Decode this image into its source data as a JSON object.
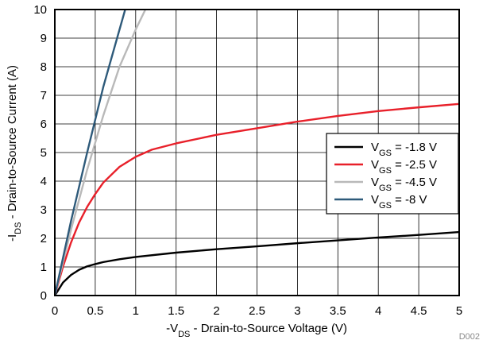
{
  "chart_data": {
    "type": "line",
    "xlabel": "-V_DS - Drain-to-Source Voltage (V)",
    "ylabel": "-I_DS - Drain-to-Source Current (A)",
    "xlim": [
      0,
      5
    ],
    "ylim": [
      0,
      10
    ],
    "x_ticks": [
      "0",
      "0.5",
      "1",
      "1.5",
      "2",
      "2.5",
      "3",
      "3.5",
      "4",
      "4.5",
      "5"
    ],
    "y_ticks": [
      "0",
      "1",
      "2",
      "3",
      "4",
      "5",
      "6",
      "7",
      "8",
      "9",
      "10"
    ],
    "grid": true,
    "legend_position": "right",
    "figure_id": "D002",
    "series": [
      {
        "name": "V_GS = -1.8 V",
        "name_parts": {
          "pre": "V",
          "sub": "GS",
          "post": " = -1.8 V"
        },
        "color": "#000000",
        "points": [
          [
            0,
            0
          ],
          [
            0.1,
            0.45
          ],
          [
            0.2,
            0.72
          ],
          [
            0.3,
            0.9
          ],
          [
            0.4,
            1.02
          ],
          [
            0.5,
            1.1
          ],
          [
            0.6,
            1.17
          ],
          [
            0.8,
            1.27
          ],
          [
            1.0,
            1.35
          ],
          [
            1.5,
            1.5
          ],
          [
            2.0,
            1.62
          ],
          [
            2.5,
            1.72
          ],
          [
            3.0,
            1.83
          ],
          [
            3.5,
            1.93
          ],
          [
            4.0,
            2.03
          ],
          [
            4.5,
            2.12
          ],
          [
            5.0,
            2.22
          ]
        ]
      },
      {
        "name": "V_GS = -2.5 V",
        "name_parts": {
          "pre": "V",
          "sub": "GS",
          "post": " = -2.5 V"
        },
        "color": "#e8202a",
        "points": [
          [
            0,
            0
          ],
          [
            0.1,
            1.0
          ],
          [
            0.2,
            1.85
          ],
          [
            0.3,
            2.55
          ],
          [
            0.4,
            3.1
          ],
          [
            0.5,
            3.55
          ],
          [
            0.6,
            3.95
          ],
          [
            0.8,
            4.5
          ],
          [
            1.0,
            4.85
          ],
          [
            1.2,
            5.1
          ],
          [
            1.5,
            5.32
          ],
          [
            2.0,
            5.62
          ],
          [
            2.5,
            5.85
          ],
          [
            3.0,
            6.08
          ],
          [
            3.5,
            6.28
          ],
          [
            4.0,
            6.45
          ],
          [
            4.5,
            6.58
          ],
          [
            5.0,
            6.7
          ]
        ]
      },
      {
        "name": "V_GS = -4.5 V",
        "name_parts": {
          "pre": "V",
          "sub": "GS",
          "post": " = -4.5 V"
        },
        "color": "#b9b9b9",
        "points": [
          [
            0,
            0
          ],
          [
            0.2,
            2.3
          ],
          [
            0.4,
            4.4
          ],
          [
            0.6,
            6.3
          ],
          [
            0.8,
            8.0
          ],
          [
            1.0,
            9.3
          ],
          [
            1.12,
            10.0
          ]
        ]
      },
      {
        "name": "V_GS = -8 V",
        "name_parts": {
          "pre": "V",
          "sub": "GS",
          "post": " = -8 V"
        },
        "color": "#2e5a7a",
        "points": [
          [
            0,
            0
          ],
          [
            0.2,
            2.6
          ],
          [
            0.4,
            5.0
          ],
          [
            0.6,
            7.3
          ],
          [
            0.87,
            10.0
          ]
        ]
      }
    ]
  }
}
